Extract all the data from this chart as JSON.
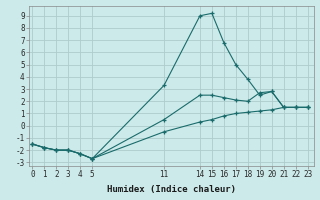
{
  "xlabel": "Humidex (Indice chaleur)",
  "background_color": "#cdeaea",
  "grid_color": "#aecccc",
  "line_color": "#1a6b6b",
  "series": [
    {
      "x": [
        0,
        1,
        2,
        3,
        4,
        5,
        11,
        14,
        15,
        16,
        17,
        18,
        19,
        20,
        21,
        22,
        23
      ],
      "y": [
        -1.5,
        -1.8,
        -2.0,
        -2.0,
        -2.3,
        -2.7,
        3.3,
        9.0,
        9.2,
        6.8,
        5.0,
        3.8,
        2.5,
        2.8,
        1.5,
        1.5,
        1.5
      ]
    },
    {
      "x": [
        0,
        1,
        2,
        3,
        4,
        5,
        11,
        14,
        15,
        16,
        17,
        18,
        19,
        20,
        21,
        22,
        23
      ],
      "y": [
        -1.5,
        -1.8,
        -2.0,
        -2.0,
        -2.3,
        -2.7,
        0.5,
        2.5,
        2.5,
        2.3,
        2.1,
        2.0,
        2.7,
        2.8,
        1.5,
        1.5,
        1.5
      ]
    },
    {
      "x": [
        0,
        1,
        2,
        3,
        4,
        5,
        11,
        14,
        15,
        16,
        17,
        18,
        19,
        20,
        21,
        22,
        23
      ],
      "y": [
        -1.5,
        -1.8,
        -2.0,
        -2.0,
        -2.3,
        -2.7,
        -0.5,
        0.3,
        0.5,
        0.8,
        1.0,
        1.1,
        1.2,
        1.3,
        1.5,
        1.5,
        1.5
      ]
    }
  ],
  "xlim": [
    -0.3,
    23.5
  ],
  "ylim": [
    -3.3,
    9.8
  ],
  "xticks": [
    0,
    1,
    2,
    3,
    4,
    5,
    11,
    14,
    15,
    16,
    17,
    18,
    19,
    20,
    21,
    22,
    23
  ],
  "yticks": [
    -3,
    -2,
    -1,
    0,
    1,
    2,
    3,
    4,
    5,
    6,
    7,
    8,
    9
  ],
  "xlabel_fontsize": 6.5,
  "tick_fontsize": 5.5
}
